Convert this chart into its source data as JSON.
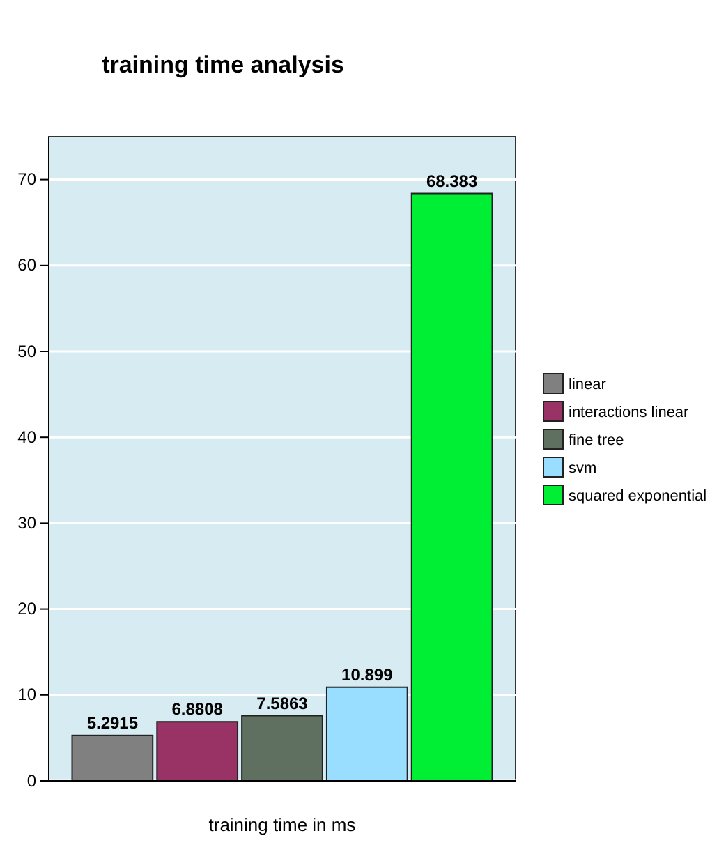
{
  "chart_data": {
    "type": "bar",
    "title": "training time analysis",
    "xlabel": "training time in ms",
    "categories": [
      null
    ],
    "series": [
      {
        "name": "linear",
        "color": "#808080",
        "values": [
          5.2915
        ]
      },
      {
        "name": "interactions linear",
        "color": "#993366",
        "values": [
          6.8808
        ]
      },
      {
        "name": "fine tree",
        "color": "#5f7060",
        "values": [
          7.5863
        ]
      },
      {
        "name": "svm",
        "color": "#99ddff",
        "values": [
          10.899
        ]
      },
      {
        "name": "squared exponential",
        "color": "#00ee33",
        "values": [
          68.383
        ]
      }
    ],
    "ylim": [
      0,
      75
    ],
    "yticks": [
      0,
      10,
      20,
      30,
      40,
      50,
      60,
      70
    ],
    "grid": "y",
    "legend": "right",
    "data_labels": true
  }
}
